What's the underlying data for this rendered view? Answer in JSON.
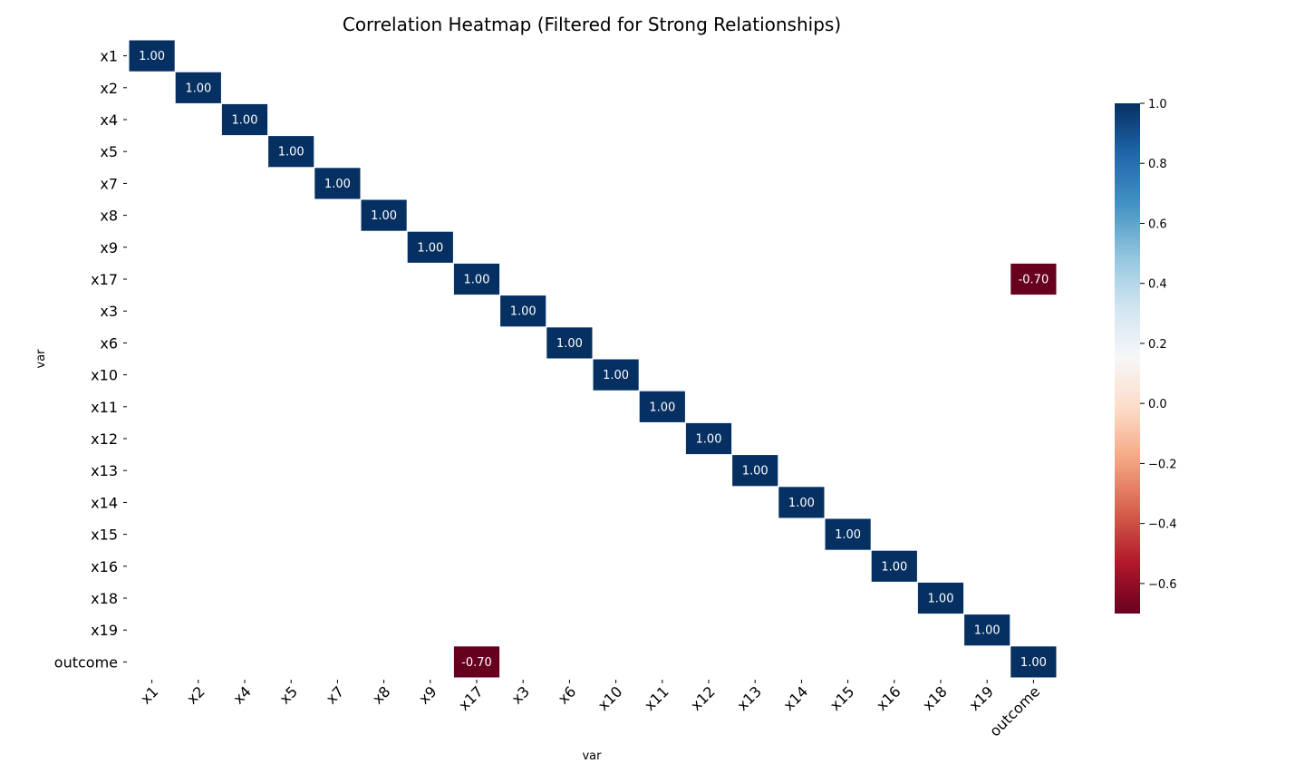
{
  "chart_data": {
    "type": "heatmap",
    "title": "Correlation Heatmap (Filtered for Strong Relationships)",
    "xlabel": "var",
    "ylabel": "var",
    "x_categories": [
      "x1",
      "x2",
      "x4",
      "x5",
      "x7",
      "x8",
      "x9",
      "x17",
      "x3",
      "x6",
      "x10",
      "x11",
      "x12",
      "x13",
      "x14",
      "x15",
      "x16",
      "x18",
      "x19",
      "outcome"
    ],
    "y_categories": [
      "x1",
      "x2",
      "x4",
      "x5",
      "x7",
      "x8",
      "x9",
      "x17",
      "x3",
      "x6",
      "x10",
      "x11",
      "x12",
      "x13",
      "x14",
      "x15",
      "x16",
      "x18",
      "x19",
      "outcome"
    ],
    "cells": [
      {
        "row": "x1",
        "col": "x1",
        "value": 1.0
      },
      {
        "row": "x2",
        "col": "x2",
        "value": 1.0
      },
      {
        "row": "x4",
        "col": "x4",
        "value": 1.0
      },
      {
        "row": "x5",
        "col": "x5",
        "value": 1.0
      },
      {
        "row": "x7",
        "col": "x7",
        "value": 1.0
      },
      {
        "row": "x8",
        "col": "x8",
        "value": 1.0
      },
      {
        "row": "x9",
        "col": "x9",
        "value": 1.0
      },
      {
        "row": "x17",
        "col": "x17",
        "value": 1.0
      },
      {
        "row": "x17",
        "col": "outcome",
        "value": -0.7
      },
      {
        "row": "x3",
        "col": "x3",
        "value": 1.0
      },
      {
        "row": "x6",
        "col": "x6",
        "value": 1.0
      },
      {
        "row": "x10",
        "col": "x10",
        "value": 1.0
      },
      {
        "row": "x11",
        "col": "x11",
        "value": 1.0
      },
      {
        "row": "x12",
        "col": "x12",
        "value": 1.0
      },
      {
        "row": "x13",
        "col": "x13",
        "value": 1.0
      },
      {
        "row": "x14",
        "col": "x14",
        "value": 1.0
      },
      {
        "row": "x15",
        "col": "x15",
        "value": 1.0
      },
      {
        "row": "x16",
        "col": "x16",
        "value": 1.0
      },
      {
        "row": "x18",
        "col": "x18",
        "value": 1.0
      },
      {
        "row": "x19",
        "col": "x19",
        "value": 1.0
      },
      {
        "row": "outcome",
        "col": "x17",
        "value": -0.7
      },
      {
        "row": "outcome",
        "col": "outcome",
        "value": 1.0
      }
    ],
    "value_format": "0.00",
    "colormap": "RdBu",
    "colorbar": {
      "range": [
        -0.7,
        1.0
      ],
      "ticks": [
        1.0,
        0.8,
        0.6,
        0.4,
        0.2,
        0.0,
        -0.2,
        -0.4,
        -0.6
      ],
      "tick_labels": [
        "1.0",
        "0.8",
        "0.6",
        "0.4",
        "0.2",
        "0.0",
        "−0.2",
        "−0.4",
        "−0.6"
      ],
      "position": "right"
    },
    "grid": false
  }
}
